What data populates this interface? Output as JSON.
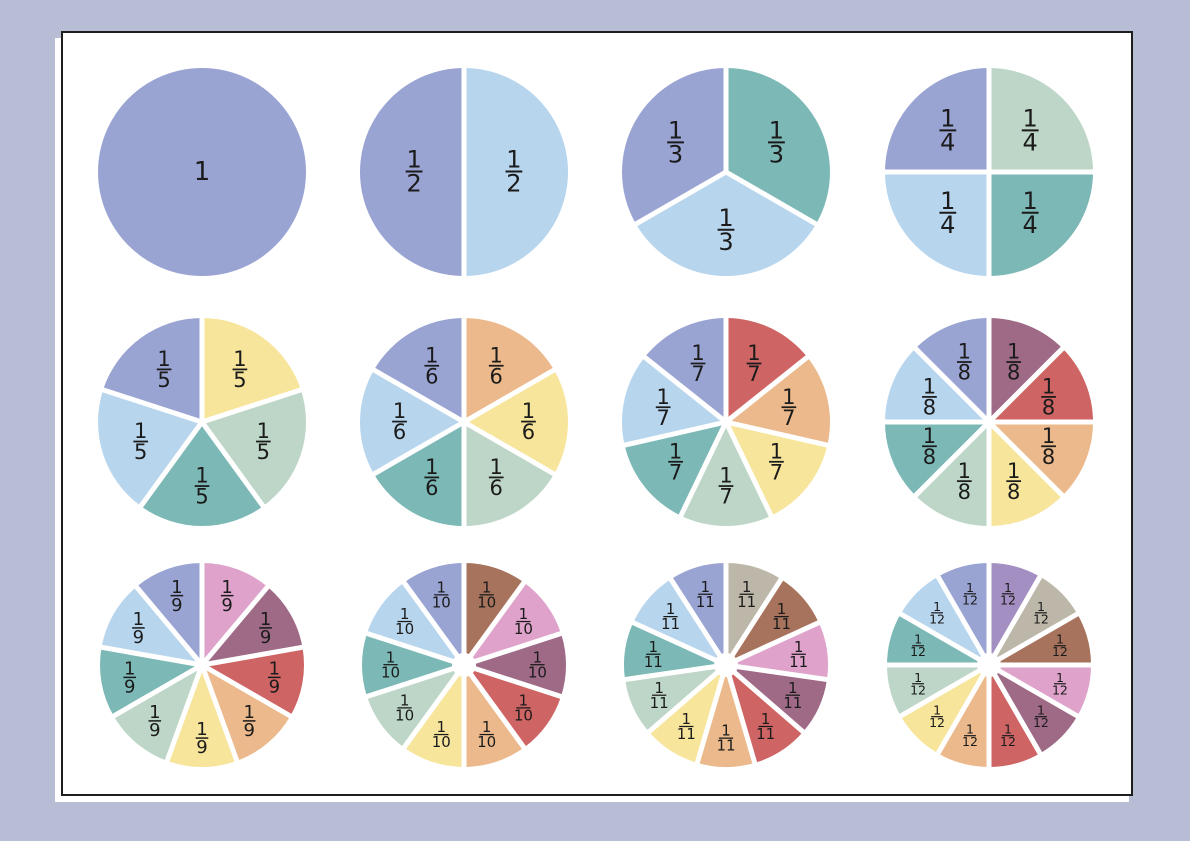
{
  "colors": {
    "background": "#b8bdd6",
    "page": "#ffffff",
    "border": "#1e1e1e",
    "slice_palette": {
      "lavender": "#9aa4d3",
      "light_blue": "#b8d5ee",
      "teal": "#7bb8b6",
      "sage": "#bdd6c7",
      "yellow": "#f7e59b",
      "peach": "#ebb98b",
      "red": "#cf6464",
      "plum": "#9e6a86",
      "pink": "#dea2cb",
      "brown": "#a7735c",
      "taupe": "#bcb7a8",
      "purple": "#a48fc2"
    }
  },
  "circles": [
    {
      "denominator": 1,
      "whole_label": "1",
      "numerator": "1",
      "denominator_label": "1",
      "slice_colors": [
        "lavender"
      ]
    },
    {
      "denominator": 2,
      "numerator": "1",
      "denominator_label": "2",
      "slice_colors": [
        "light_blue",
        "lavender"
      ]
    },
    {
      "denominator": 3,
      "numerator": "1",
      "denominator_label": "3",
      "slice_colors": [
        "teal",
        "light_blue",
        "lavender"
      ]
    },
    {
      "denominator": 4,
      "numerator": "1",
      "denominator_label": "4",
      "slice_colors": [
        "sage",
        "teal",
        "light_blue",
        "lavender"
      ]
    },
    {
      "denominator": 5,
      "numerator": "1",
      "denominator_label": "5",
      "slice_colors": [
        "yellow",
        "sage",
        "teal",
        "light_blue",
        "lavender"
      ]
    },
    {
      "denominator": 6,
      "numerator": "1",
      "denominator_label": "6",
      "slice_colors": [
        "peach",
        "yellow",
        "sage",
        "teal",
        "light_blue",
        "lavender"
      ]
    },
    {
      "denominator": 7,
      "numerator": "1",
      "denominator_label": "7",
      "slice_colors": [
        "red",
        "peach",
        "yellow",
        "sage",
        "teal",
        "light_blue",
        "lavender"
      ]
    },
    {
      "denominator": 8,
      "numerator": "1",
      "denominator_label": "8",
      "slice_colors": [
        "plum",
        "red",
        "peach",
        "yellow",
        "sage",
        "teal",
        "light_blue",
        "lavender"
      ]
    },
    {
      "denominator": 9,
      "numerator": "1",
      "denominator_label": "9",
      "slice_colors": [
        "pink",
        "plum",
        "red",
        "peach",
        "yellow",
        "sage",
        "teal",
        "light_blue",
        "lavender"
      ]
    },
    {
      "denominator": 10,
      "numerator": "1",
      "denominator_label": "10",
      "slice_colors": [
        "brown",
        "pink",
        "plum",
        "red",
        "peach",
        "yellow",
        "sage",
        "teal",
        "light_blue",
        "lavender"
      ]
    },
    {
      "denominator": 11,
      "numerator": "1",
      "denominator_label": "11",
      "slice_colors": [
        "taupe",
        "brown",
        "pink",
        "plum",
        "red",
        "peach",
        "yellow",
        "sage",
        "teal",
        "light_blue",
        "lavender"
      ]
    },
    {
      "denominator": 12,
      "numerator": "1",
      "denominator_label": "12",
      "slice_colors": [
        "purple",
        "taupe",
        "brown",
        "pink",
        "plum",
        "red",
        "peach",
        "yellow",
        "sage",
        "teal",
        "light_blue",
        "lavender"
      ]
    }
  ]
}
